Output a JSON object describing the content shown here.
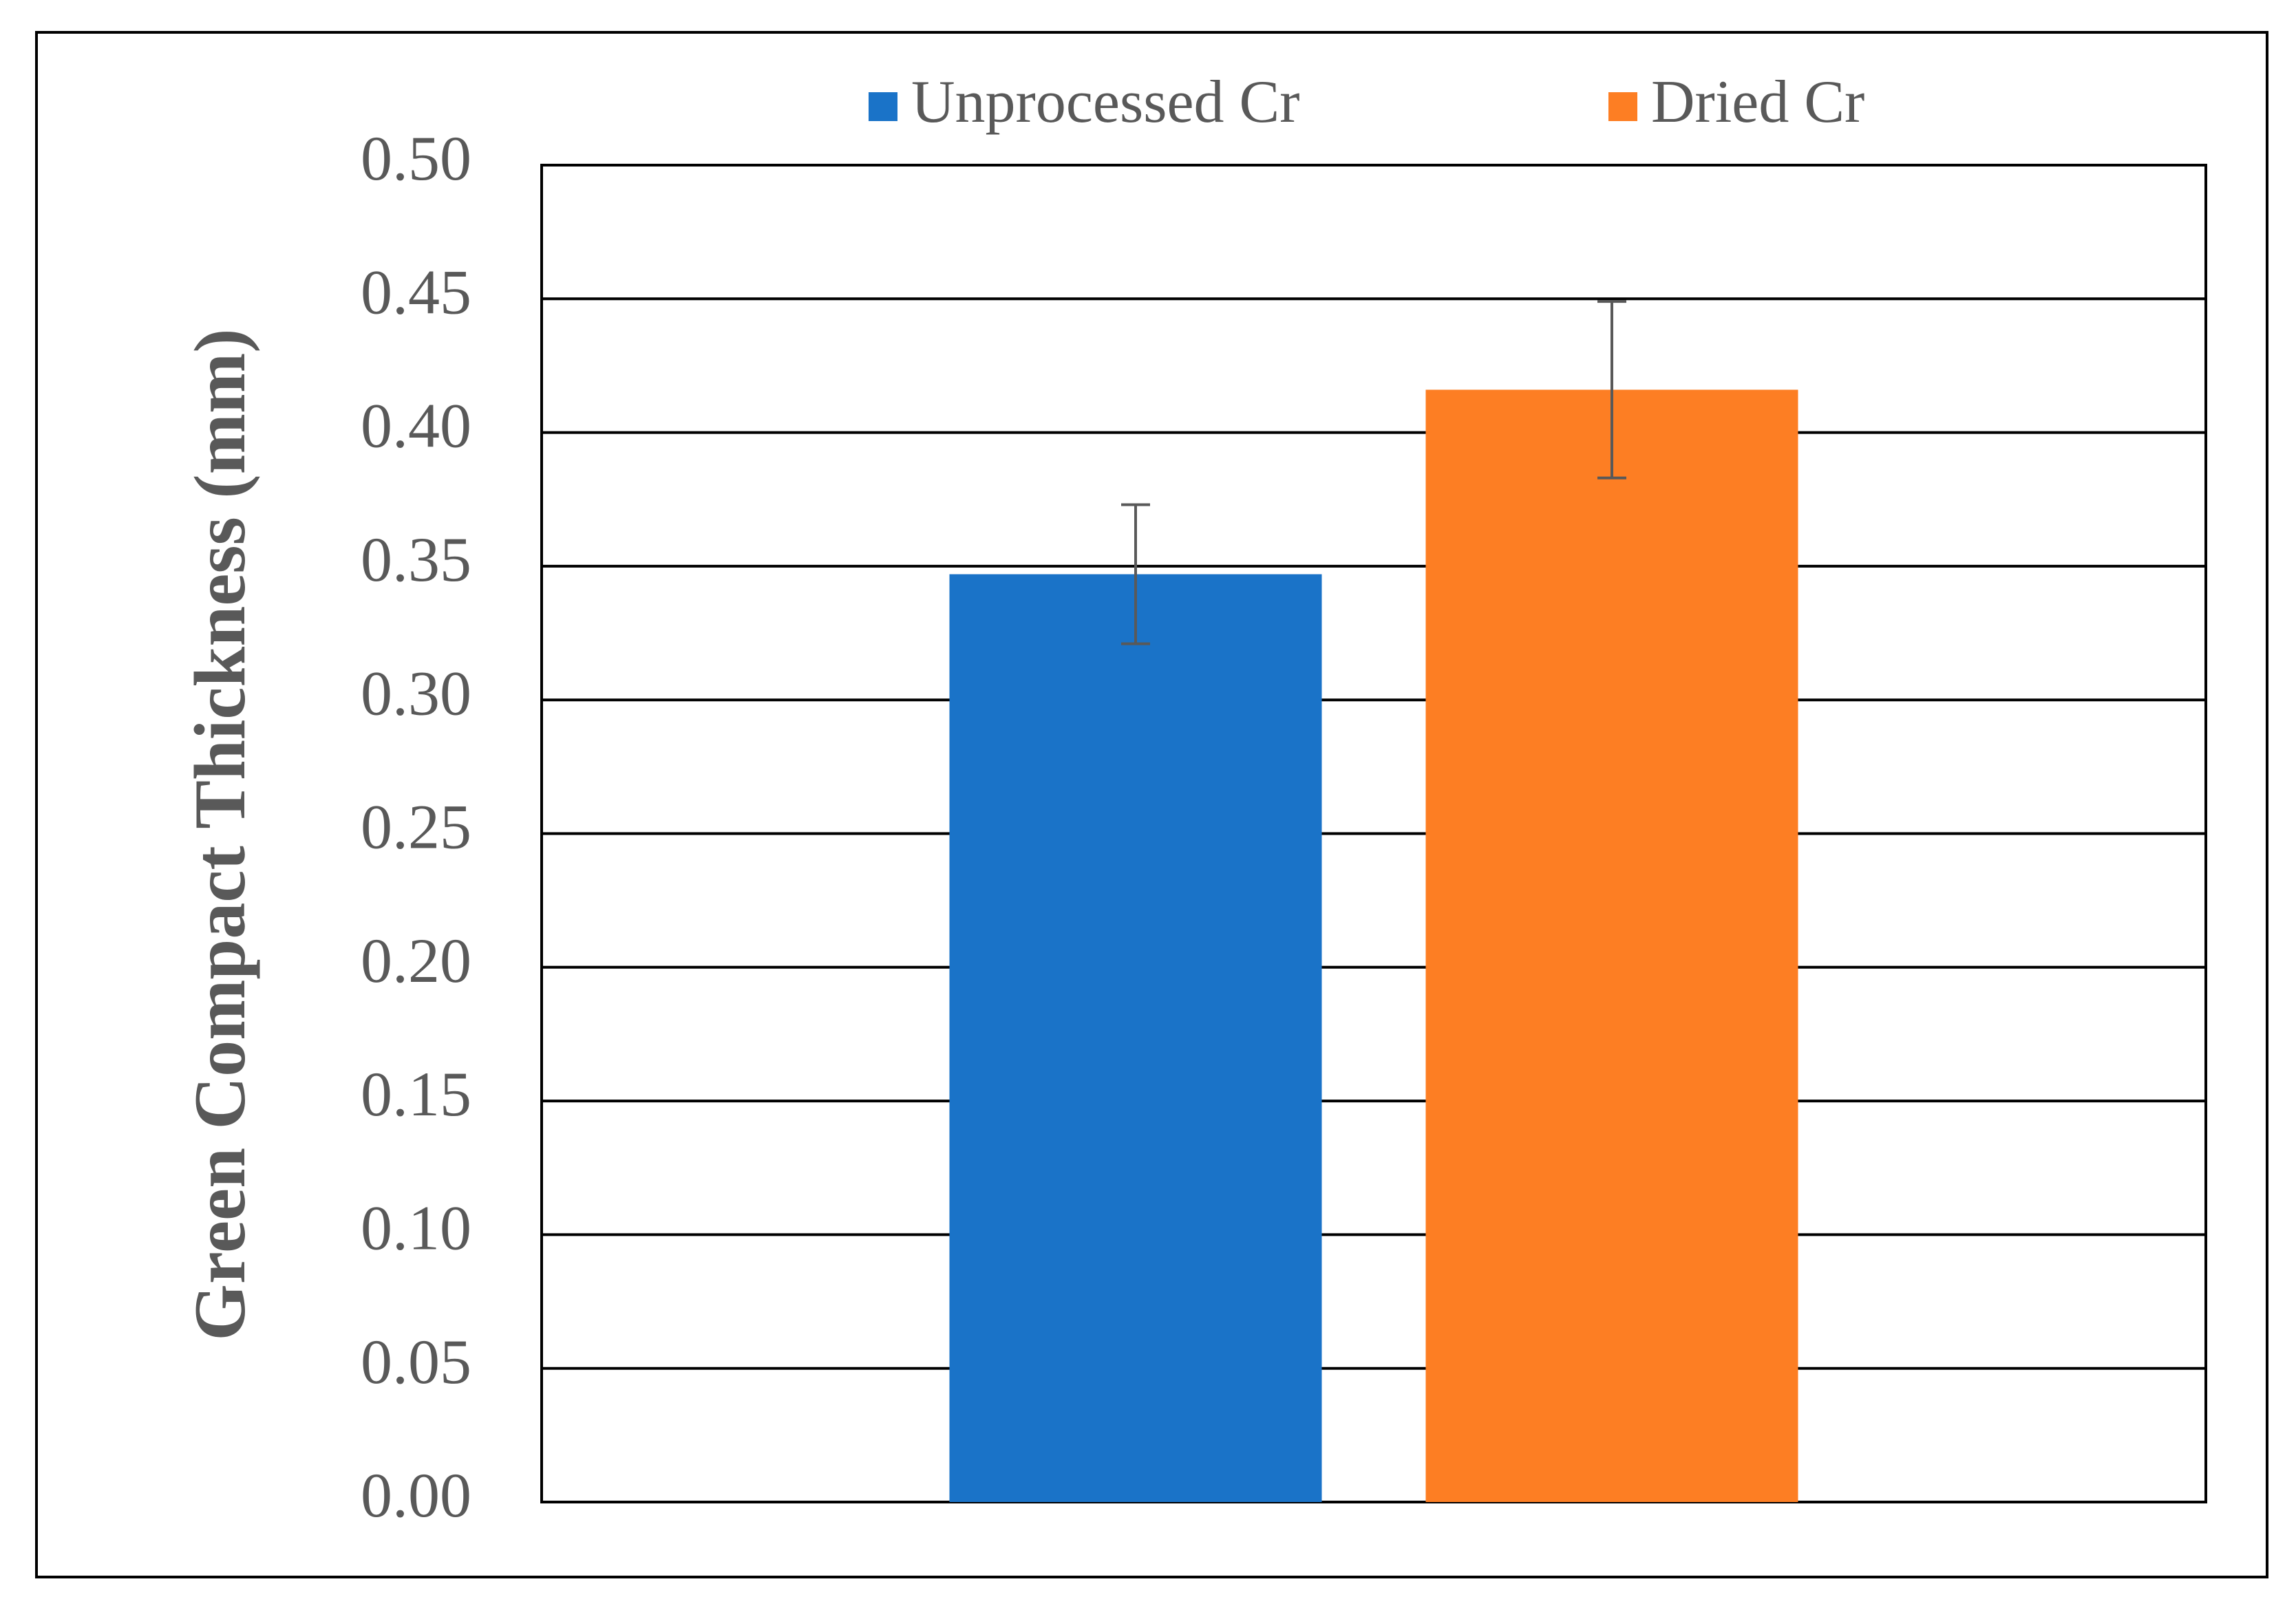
{
  "chart_data": {
    "type": "bar",
    "y_label": "Green Compact Thickness (mm)",
    "categories": [
      null
    ],
    "series": [
      {
        "name": "Unprocessed Cr",
        "color": "#1a73c8",
        "values": [
          0.347
        ],
        "errors": [
          0.026
        ]
      },
      {
        "name": "Dried Cr",
        "color": "#fd7e23",
        "values": [
          0.416
        ],
        "errors": [
          0.033
        ]
      }
    ],
    "ylim": [
      0,
      0.5
    ],
    "yticks": [
      {
        "value": 0,
        "label": "0.00"
      },
      {
        "value": 0.05,
        "label": "0.05"
      },
      {
        "value": 0.1,
        "label": "0.10"
      },
      {
        "value": 0.15,
        "label": "0.15"
      },
      {
        "value": 0.2,
        "label": "0.20"
      },
      {
        "value": 0.25,
        "label": "0.25"
      },
      {
        "value": 0.3,
        "label": "0.30"
      },
      {
        "value": 0.35,
        "label": "0.35"
      },
      {
        "value": 0.4,
        "label": "0.40"
      },
      {
        "value": 0.45,
        "label": "0.45"
      },
      {
        "value": 0.5,
        "label": "0.50"
      }
    ],
    "grid": true,
    "legend": "top"
  }
}
